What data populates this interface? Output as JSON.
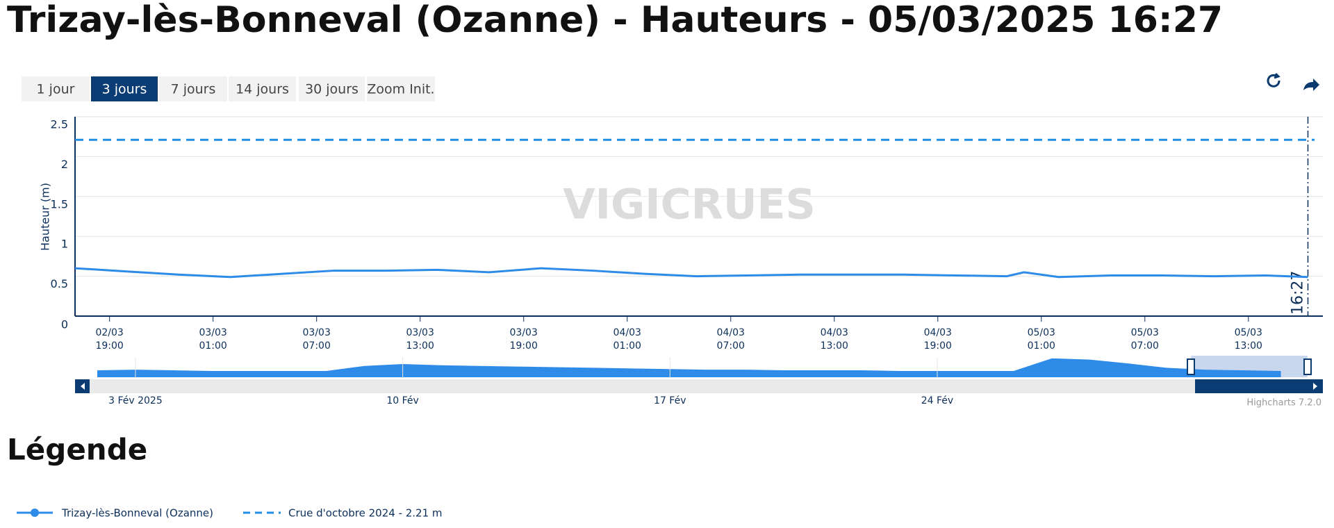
{
  "header": {
    "title": "Trizay-lès-Bonneval (Ozanne) - Hauteurs - 05/03/2025 16:27"
  },
  "buttons": [
    "1 jour",
    "3 jours",
    "7 jours",
    "14 jours",
    "30 jours",
    "Zoom Init."
  ],
  "active_button": 1,
  "chart_data": {
    "type": "line",
    "y_label": "Hauteur (m)",
    "watermark": "VIGICRUES",
    "x": [
      "02/03 17:00",
      "02/03 20:00",
      "02/03 23:00",
      "03/03 02:00",
      "03/03 05:00",
      "03/03 08:00",
      "03/03 11:00",
      "03/03 14:00",
      "03/03 17:00",
      "03/03 20:00",
      "03/03 23:00",
      "04/03 02:00",
      "04/03 05:00",
      "04/03 08:00",
      "04/03 11:00",
      "04/03 14:00",
      "04/03 17:00",
      "04/03 20:00",
      "04/03 23:00",
      "05/03 00:00",
      "05/03 02:00",
      "05/03 05:00",
      "05/03 08:00",
      "05/03 11:00",
      "05/03 14:00",
      "05/03 16:27"
    ],
    "series": [
      {
        "name": "Trizay-lès-Bonneval (Ozanne)",
        "color": "#2f8be8",
        "values": [
          0.6,
          0.56,
          0.52,
          0.49,
          0.53,
          0.57,
          0.57,
          0.58,
          0.55,
          0.6,
          0.57,
          0.53,
          0.5,
          0.51,
          0.52,
          0.52,
          0.52,
          0.51,
          0.5,
          0.55,
          0.49,
          0.51,
          0.51,
          0.5,
          0.51,
          0.49
        ]
      }
    ],
    "threshold": {
      "name": "Crue d'octobre 2024 - 2.21 m",
      "value": 2.21,
      "color": "#1f8fe5"
    },
    "now_marker": {
      "x": "05/03 16:27",
      "label": "16:27"
    },
    "xlim": [
      "02/03 17:00",
      "05/03 16:50"
    ],
    "xticks": [
      "02/03 19:00",
      "03/03 01:00",
      "03/03 07:00",
      "03/03 13:00",
      "03/03 19:00",
      "04/03 01:00",
      "04/03 07:00",
      "04/03 13:00",
      "04/03 19:00",
      "05/03 01:00",
      "05/03 07:00",
      "05/03 13:00"
    ],
    "ylim": [
      0,
      2.5
    ],
    "yticks": [
      0,
      0.5,
      1,
      1.5,
      2,
      2.5
    ],
    "grid": true,
    "navigator": {
      "values": [
        0.55,
        0.6,
        0.55,
        0.5,
        0.5,
        0.5,
        0.5,
        0.9,
        1.05,
        0.95,
        0.9,
        0.85,
        0.8,
        0.75,
        0.7,
        0.65,
        0.6,
        0.6,
        0.55,
        0.55,
        0.55,
        0.5,
        0.5,
        0.5,
        0.5,
        1.5,
        1.4,
        1.1,
        0.75,
        0.6,
        0.55,
        0.5
      ],
      "xlim": [
        -0.2,
        31.7
      ],
      "ylim": [
        0,
        1.6
      ],
      "ticks": [
        {
          "value": 1,
          "label": "3 Fév 2025"
        },
        {
          "value": 8,
          "label": "10 Fév"
        },
        {
          "value": 15,
          "label": "17 Fév"
        },
        {
          "value": 22,
          "label": "24 Fév"
        }
      ]
    },
    "credits": "Highcharts 7.2.0"
  },
  "legend": {
    "title": "Légende"
  }
}
